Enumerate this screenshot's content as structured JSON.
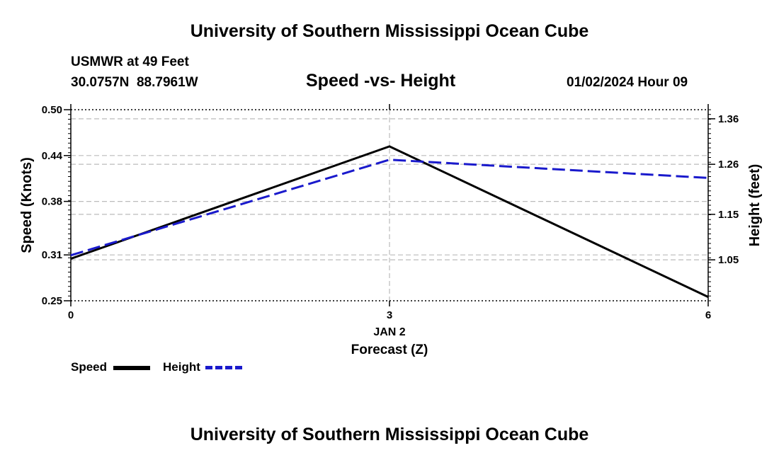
{
  "header": {
    "title": "University of Southern Mississippi Ocean Cube",
    "station": "USMWR at 49 Feet",
    "coords": "30.0757N  88.7961W",
    "subtitle": "Speed -vs- Height",
    "datetime": "01/02/2024 Hour 09"
  },
  "footer": {
    "title": "University of Southern Mississippi Ocean Cube"
  },
  "legend": {
    "speed_label": "Speed",
    "height_label": "Height"
  },
  "colors": {
    "speed": "#000000",
    "height": "#1a1acc",
    "grid": "#bbbbbb"
  },
  "chart_data": {
    "type": "line",
    "title": "Speed -vs- Height",
    "xlabel": "Forecast (Z)",
    "x_date_label": "JAN 2",
    "x": [
      0,
      3,
      6
    ],
    "x_tick_labels": [
      "0",
      "3",
      "6"
    ],
    "xlim": [
      0,
      6
    ],
    "ylabel": "Speed (Knots)",
    "ylim": [
      0.25,
      0.5
    ],
    "y_ticks": [
      0.25,
      0.31,
      0.38,
      0.44,
      0.5
    ],
    "y_tick_labels": [
      "0.25",
      "0.31",
      "0.38",
      "0.44",
      "0.50"
    ],
    "y2label": "Height (feet)",
    "y2lim": [
      0.96,
      1.38
    ],
    "y2_ticks": [
      1.05,
      1.15,
      1.26,
      1.36
    ],
    "y2_tick_labels": [
      "1.05",
      "1.15",
      "1.26",
      "1.36"
    ],
    "grid": true,
    "series": [
      {
        "name": "Speed",
        "axis": "left",
        "style": "solid",
        "values": [
          0.305,
          0.452,
          0.255
        ]
      },
      {
        "name": "Height",
        "axis": "right",
        "style": "dashed",
        "values": [
          1.06,
          1.27,
          1.23
        ]
      }
    ]
  }
}
